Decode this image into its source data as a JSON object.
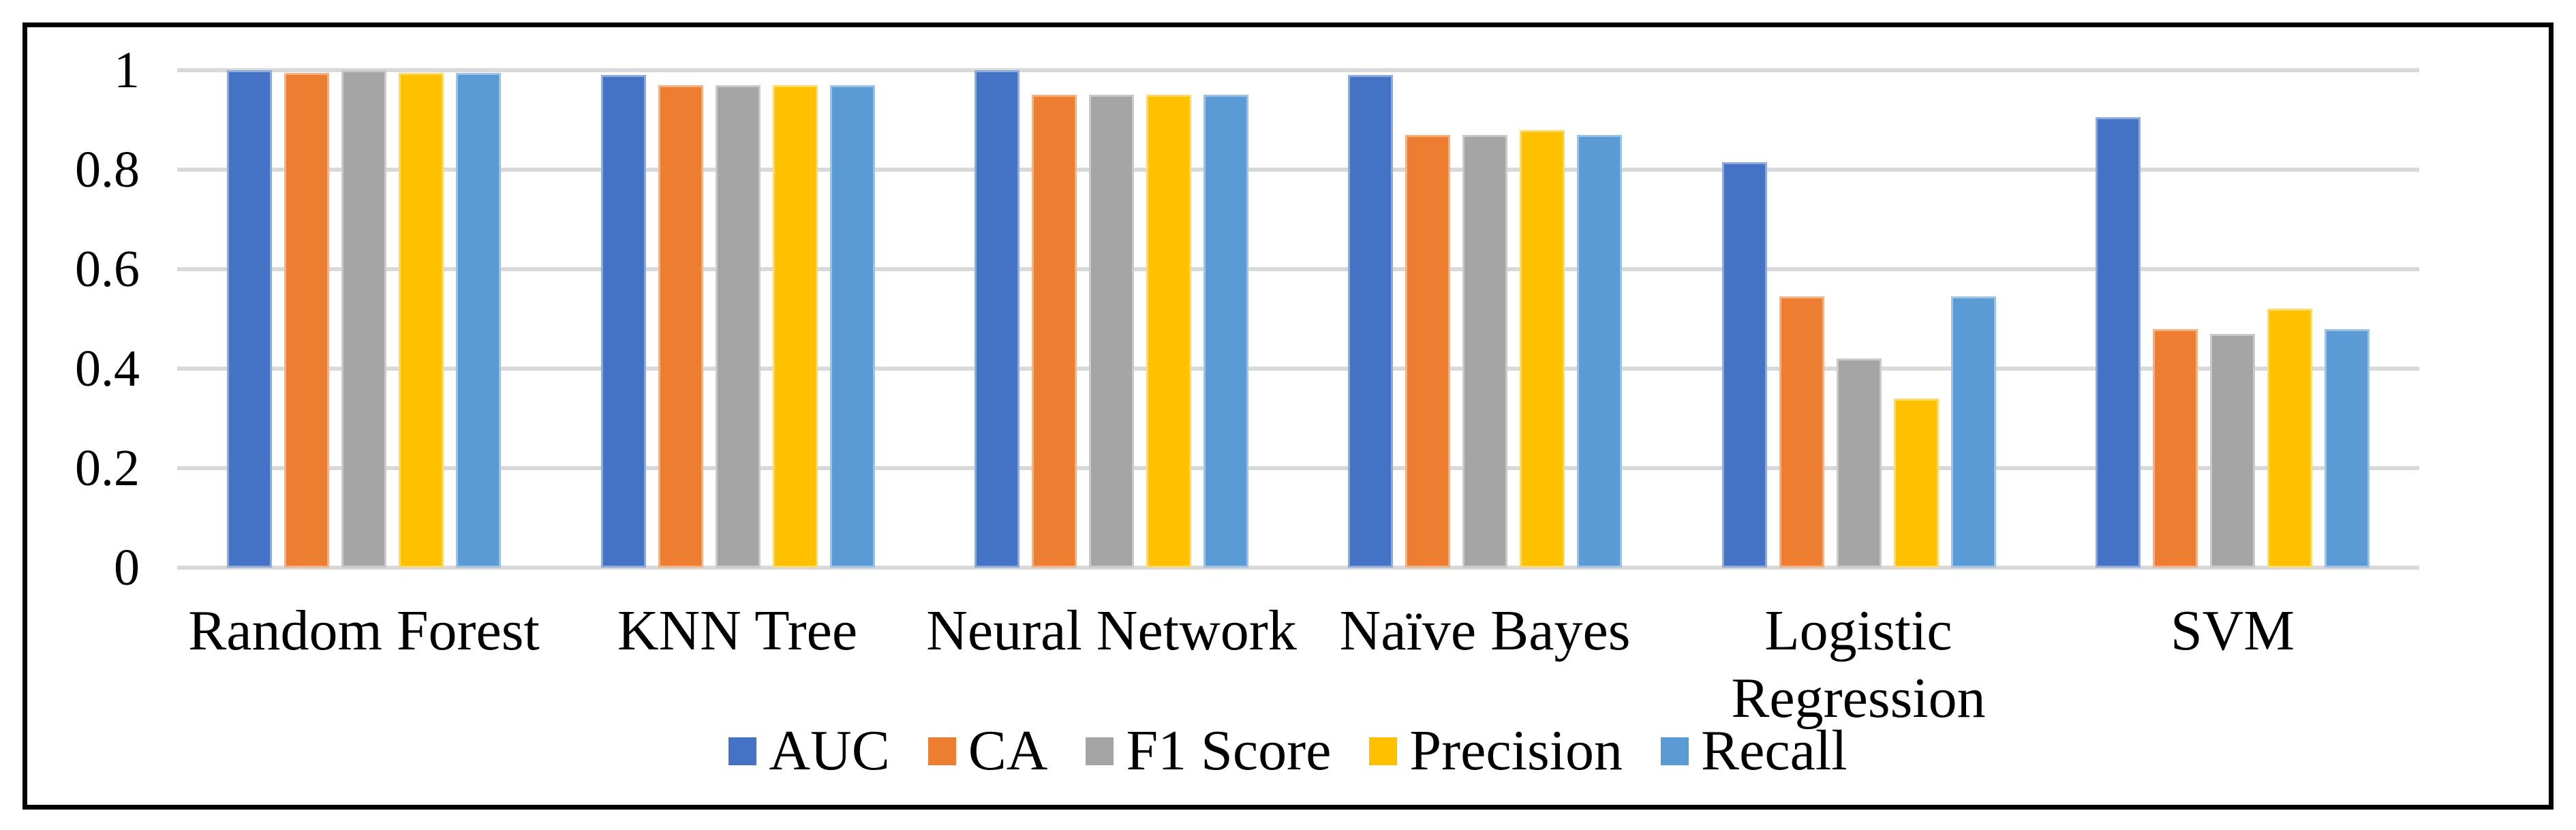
{
  "colors": {
    "background": "#FFFFFF",
    "frame_border": "#000000",
    "gridline": "#D9D9D9",
    "text": "#000000"
  },
  "chart_data": {
    "type": "bar",
    "title": "",
    "xlabel": "",
    "ylabel": "",
    "ylim": [
      0,
      1
    ],
    "grid": "horizontal gridlines on",
    "legend_position": "bottom center",
    "y_ticks": [
      {
        "label": "1",
        "value": 1.0
      },
      {
        "label": "0.8",
        "value": 0.8
      },
      {
        "label": "0.6",
        "value": 0.6
      },
      {
        "label": "0.4",
        "value": 0.4
      },
      {
        "label": "0.2",
        "value": 0.2
      },
      {
        "label": "0",
        "value": 0.0
      }
    ],
    "categories": [
      "Random Forest",
      "KNN Tree",
      "Neural Network",
      "Naïve Bayes",
      "Logistic Regression",
      "SVM"
    ],
    "series": [
      {
        "name": "AUC",
        "color": "#4472C4",
        "values": [
          1.0,
          0.99,
          1.0,
          0.99,
          0.815,
          0.905
        ]
      },
      {
        "name": "CA",
        "color": "#ED7D31",
        "values": [
          0.995,
          0.97,
          0.95,
          0.87,
          0.545,
          0.48
        ]
      },
      {
        "name": "F1 Score",
        "color": "#A5A5A5",
        "values": [
          1.0,
          0.97,
          0.95,
          0.87,
          0.42,
          0.47
        ]
      },
      {
        "name": "Precision",
        "color": "#FFC000",
        "values": [
          0.995,
          0.97,
          0.95,
          0.88,
          0.34,
          0.52
        ]
      },
      {
        "name": "Recall",
        "color": "#5B9BD5",
        "values": [
          0.995,
          0.97,
          0.95,
          0.87,
          0.545,
          0.48
        ]
      }
    ]
  }
}
